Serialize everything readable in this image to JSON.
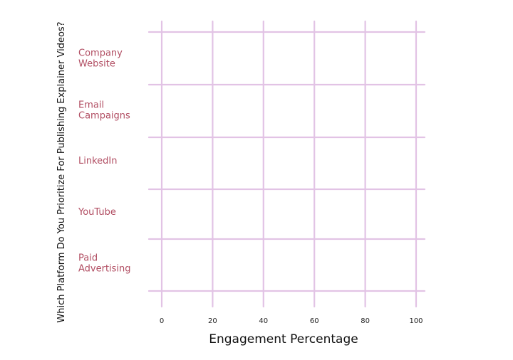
{
  "chart_data": {
    "type": "bar",
    "orientation": "horizontal",
    "title": "",
    "xlabel": "Engagement Percentage",
    "ylabel": "Which Platform Do You Prioritize For Publishing Explainer Videos?",
    "categories": [
      [
        "Company",
        "Website"
      ],
      [
        "Email",
        "Campaigns"
      ],
      [
        "LinkedIn"
      ],
      [
        "YouTube"
      ],
      [
        "Paid",
        "Advertising"
      ]
    ],
    "values": [
      0,
      0,
      0,
      0,
      0
    ],
    "xlim": [
      0,
      100
    ],
    "xticks": [
      "0",
      "20",
      "40",
      "60",
      "80",
      "100"
    ],
    "grid": true,
    "colors": {
      "grid": "#e2c3e5",
      "category_label": "#b14d62",
      "bar": "#e2c3e5"
    }
  }
}
